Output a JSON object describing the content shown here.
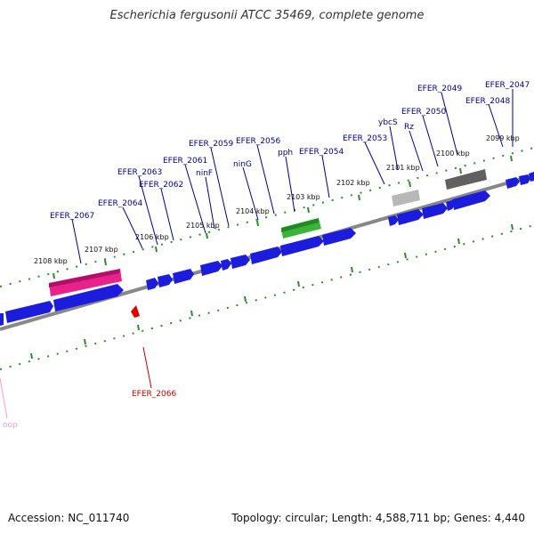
{
  "title": "Escherichia fergusonii ATCC 35469, complete genome",
  "footer": {
    "accession": "Accession: NC_011740",
    "summary": "Topology: circular; Length: 4,588,711 bp; Genes: 4,440"
  },
  "ticks": [
    "2099 kbp",
    "2100 kbp",
    "2101 kbp",
    "2102 kbp",
    "2103 kbp",
    "2104 kbp",
    "2105 kbp",
    "2106 kbp",
    "2107 kbp",
    "2108 kbp"
  ],
  "gene_labels": [
    "EFER_2047",
    "EFER_2048",
    "EFER_2049",
    "EFER_2050",
    "Rz",
    "ybcS",
    "EFER_2053",
    "EFER_2054",
    "pph",
    "EFER_2056",
    "ninG",
    "EFER_2059",
    "ninF",
    "EFER_2061",
    "EFER_2062",
    "EFER_2063",
    "EFER_2064",
    "EFER_2067",
    "EFER_2066",
    "oop"
  ],
  "colors": {
    "gene": "#1c1cdc",
    "backbone": "#808080",
    "tick": "#2e8b2e",
    "magenta": "#e8228a",
    "green": "#3ab53a",
    "gray": "#b8b8b8",
    "darkgray": "#606060",
    "red": "#e00000"
  }
}
